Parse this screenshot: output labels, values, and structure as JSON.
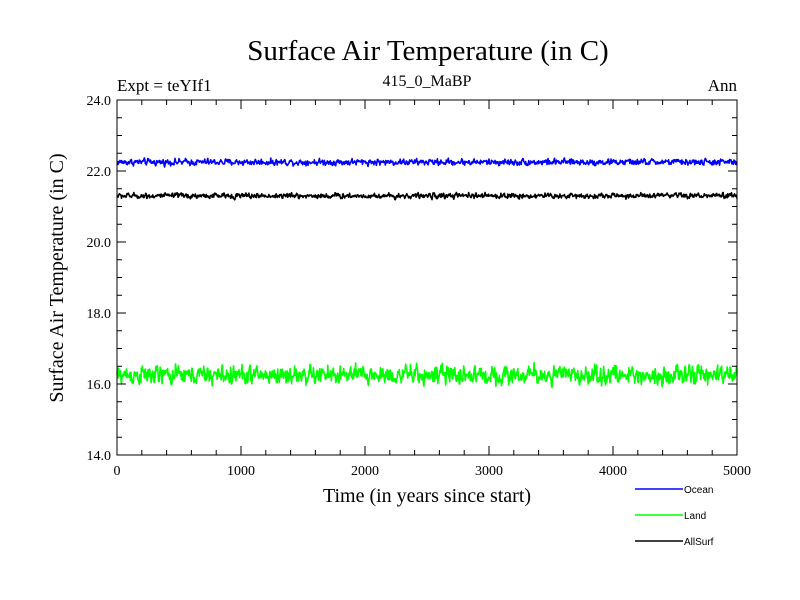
{
  "chart_data": {
    "type": "line",
    "title": "Surface Air Temperature (in C)",
    "subtitle": "415_0_MaBP",
    "left_label": "Expt = teYIf1",
    "right_label": "Ann",
    "xlabel": "Time (in years since start)",
    "ylabel": "Surface Air Temperature (in C)",
    "xlim": [
      0,
      5000
    ],
    "ylim": [
      14.0,
      24.0
    ],
    "xticks": [
      0,
      1000,
      2000,
      3000,
      4000,
      5000
    ],
    "xtick_labels": [
      "0",
      "1000",
      "2000",
      "3000",
      "4000",
      "5000"
    ],
    "yticks": [
      14.0,
      16.0,
      18.0,
      20.0,
      22.0,
      24.0
    ],
    "ytick_labels": [
      "14.0",
      "16.0",
      "18.0",
      "20.0",
      "22.0",
      "24.0"
    ],
    "grid": false,
    "legend_position": "bottom-right",
    "series": [
      {
        "name": "Ocean",
        "color": "#0000ff",
        "mean": 22.25,
        "noise_amplitude": 0.12,
        "min": 22.0,
        "max": 22.45
      },
      {
        "name": "Land",
        "color": "#00ff00",
        "mean": 16.25,
        "noise_amplitude": 0.35,
        "min": 15.6,
        "max": 17.0
      },
      {
        "name": "AllSurf",
        "color": "#000000",
        "mean": 21.3,
        "noise_amplitude": 0.1,
        "min": 21.05,
        "max": 21.55
      }
    ]
  }
}
